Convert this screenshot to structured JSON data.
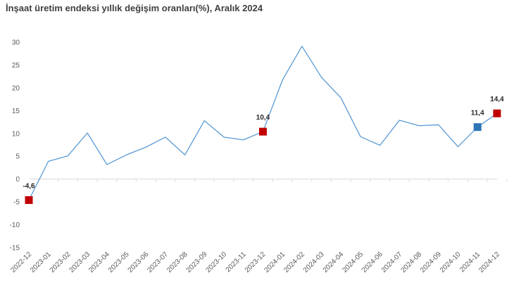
{
  "chart_data": {
    "type": "line",
    "title": "İnşaat üretim endeksi yıllık değişim oranları(%), Aralık 2024",
    "xlabel": "",
    "ylabel": "",
    "ylim": [
      -15,
      30
    ],
    "yticks": [
      -15,
      -10,
      -5,
      0,
      5,
      10,
      15,
      20,
      25,
      30
    ],
    "grid": false,
    "legend": "none",
    "line_color": "#5b9bd5",
    "categories": [
      "2022-12",
      "2023-01",
      "2023-02",
      "2023-03",
      "2023-04",
      "2023-05",
      "2023-06",
      "2023-07",
      "2023-08",
      "2023-09",
      "2023-10",
      "2023-11",
      "2023-12",
      "2024-01",
      "2024-02",
      "2024-03",
      "2024-04",
      "2024-05",
      "2024-06",
      "2024-07",
      "2024-08",
      "2024-09",
      "2024-10",
      "2024-11",
      "2024-12"
    ],
    "series": [
      {
        "values": [
          -4.6,
          3.9,
          5.1,
          10.1,
          3.2,
          5.3,
          7.0,
          9.2,
          5.3,
          12.8,
          9.2,
          8.6,
          10.4,
          21.7,
          29.1,
          22.3,
          17.8,
          9.3,
          7.4,
          12.9,
          11.7,
          11.9,
          7.1,
          11.4,
          14.4
        ]
      }
    ],
    "highlighted_points": [
      {
        "category": "2022-12",
        "value": -4.6,
        "label": "-4,6",
        "color": "#c00000"
      },
      {
        "category": "2023-12",
        "value": 10.4,
        "label": "10,4",
        "color": "#c00000"
      },
      {
        "category": "2024-11",
        "value": 11.4,
        "label": "11,4",
        "color": "#2e75b6"
      },
      {
        "category": "2024-12",
        "value": 14.4,
        "label": "14,4",
        "color": "#c00000"
      }
    ]
  }
}
